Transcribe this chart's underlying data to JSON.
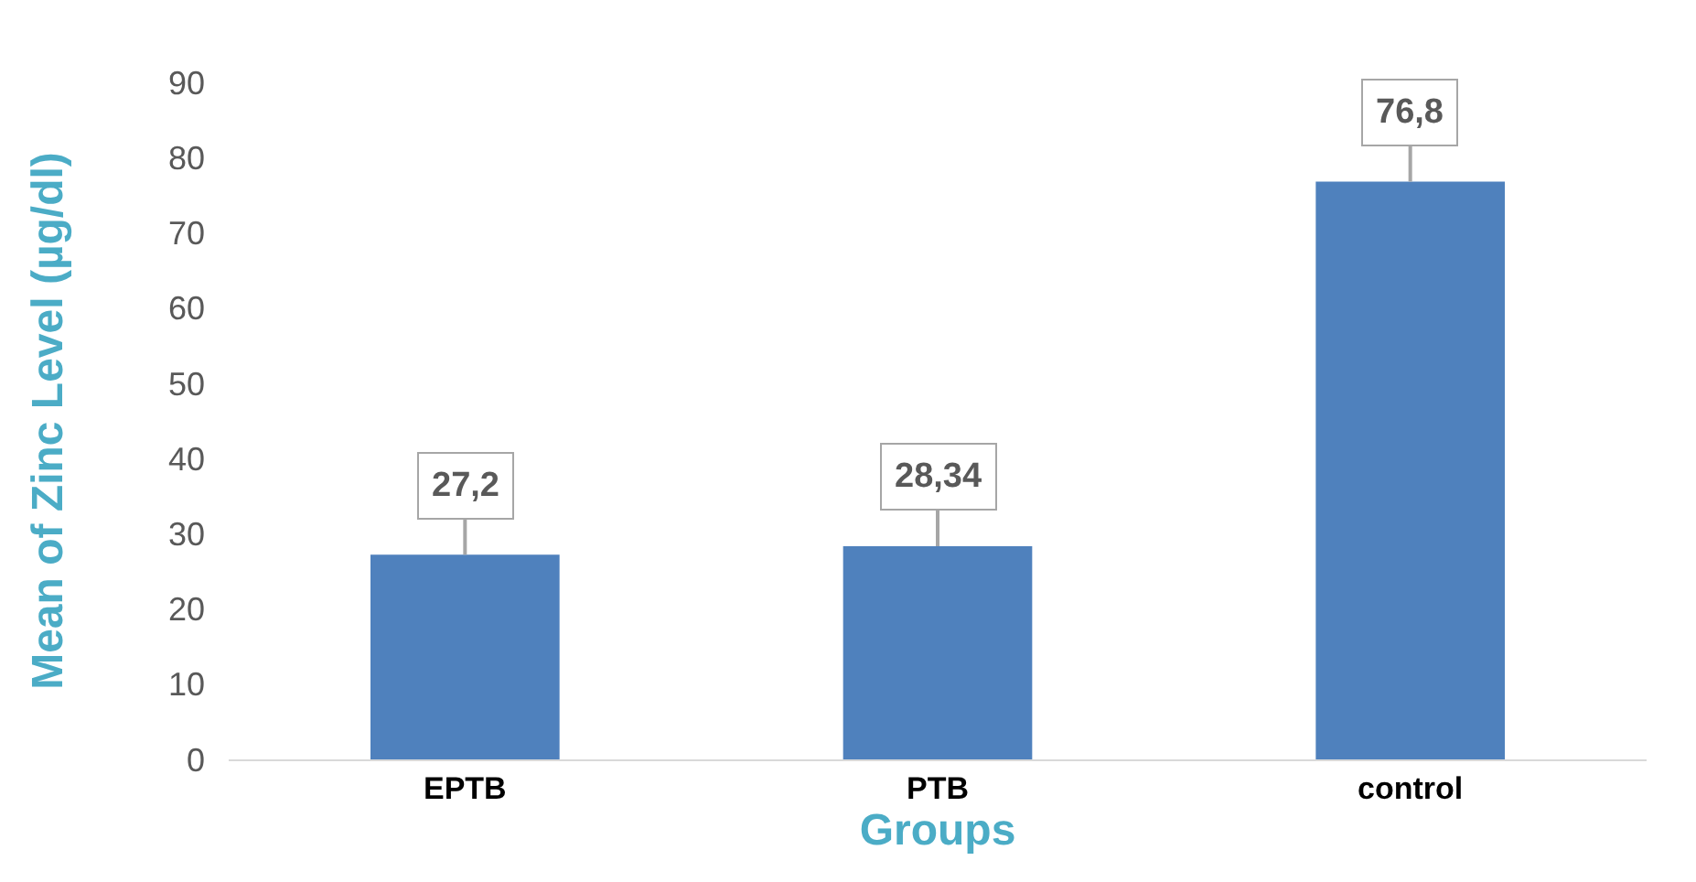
{
  "chart_data": {
    "type": "bar",
    "xlabel": "Groups",
    "ylabel": "Mean of Zinc Level (µg/dl)",
    "categories": [
      "EPTB",
      "PTB",
      "control"
    ],
    "values": [
      27.2,
      28.34,
      76.8
    ],
    "value_labels": [
      "27,2",
      "28,34",
      "76,8"
    ],
    "color": "#4f81bd",
    "ylim": [
      0,
      90
    ],
    "yticks": [
      0,
      10,
      20,
      30,
      40,
      50,
      60,
      70,
      80,
      90
    ],
    "grid": false
  }
}
